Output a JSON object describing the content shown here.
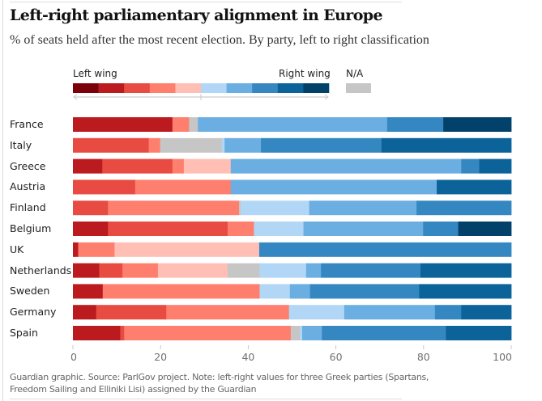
{
  "header": {
    "title": "Left-right parliamentary alignment in Europe",
    "subtitle": "% of seats held after the most recent election. By party, left to right classification"
  },
  "legend": {
    "left_label": "Left wing",
    "right_label": "Right wing",
    "na_label": "N/A",
    "scale_colors": [
      "#7a0009",
      "#bb1a1f",
      "#e84b41",
      "#ff7f6f",
      "#ffbfb4",
      "#b2d7f6",
      "#6aaee2",
      "#3587c1",
      "#0b6399",
      "#02426a"
    ],
    "na_color": "#c6c6c6"
  },
  "footer": {
    "note": "Guardian graphic. Source: ParlGov project. Note: left-right values for three Greek parties (Spartans, Freedom Sailing and Elliniki Lisi) assigned by the Guardian"
  },
  "chart_data": {
    "type": "bar",
    "orientation": "horizontal",
    "stacked": true,
    "title": "Left-right parliamentary alignment in Europe",
    "subtitle": "% of seats held after the most recent election. By party, left to right classification",
    "xlabel": "",
    "ylabel": "",
    "xlim": [
      0,
      100
    ],
    "x_ticks": [
      0,
      20,
      40,
      60,
      80,
      100
    ],
    "x_tick_labels": [
      "0",
      "20",
      "40",
      "60",
      "80",
      "100"
    ],
    "grid": false,
    "legend_position": "top-left",
    "legend": {
      "categories": [
        "Left wing (1)",
        "2",
        "3",
        "4",
        "5",
        "6",
        "7",
        "8",
        "9",
        "Right wing (10)",
        "N/A"
      ],
      "colors": [
        "#7a0009",
        "#bb1a1f",
        "#e84b41",
        "#ff7f6f",
        "#ffbfb4",
        "#b2d7f6",
        "#6aaee2",
        "#3587c1",
        "#0b6399",
        "#02426a",
        "#c6c6c6"
      ]
    },
    "categories": [
      "France",
      "Italy",
      "Greece",
      "Austria",
      "Finland",
      "Belgium",
      "UK",
      "Netherlands",
      "Sweden",
      "Germany",
      "Spain"
    ],
    "rows": [
      {
        "country": "France",
        "segments": [
          {
            "cat": 1,
            "value": 22.7
          },
          {
            "cat": 3,
            "value": 3.8
          },
          {
            "cat": "na",
            "value": 2.0
          },
          {
            "cat": 6,
            "value": 43.2
          },
          {
            "cat": 7,
            "value": 12.8
          },
          {
            "cat": 9,
            "value": 15.5
          }
        ]
      },
      {
        "country": "Italy",
        "segments": [
          {
            "cat": 2,
            "value": 17.3
          },
          {
            "cat": 3,
            "value": 2.6
          },
          {
            "cat": "na",
            "value": 14.1
          },
          {
            "cat": 5,
            "value": 0.6
          },
          {
            "cat": 6,
            "value": 8.3
          },
          {
            "cat": 7,
            "value": 27.5
          },
          {
            "cat": 8,
            "value": 29.6
          }
        ]
      },
      {
        "country": "Greece",
        "segments": [
          {
            "cat": 1,
            "value": 6.7
          },
          {
            "cat": 2,
            "value": 16.0
          },
          {
            "cat": 3,
            "value": 2.6
          },
          {
            "cat": 4,
            "value": 10.7
          },
          {
            "cat": 6,
            "value": 52.6
          },
          {
            "cat": 7,
            "value": 4.1
          },
          {
            "cat": 8,
            "value": 7.3
          }
        ]
      },
      {
        "country": "Austria",
        "segments": [
          {
            "cat": 2,
            "value": 14.2
          },
          {
            "cat": 3,
            "value": 21.8
          },
          {
            "cat": 6,
            "value": 47.0
          },
          {
            "cat": 8,
            "value": 17.0
          }
        ]
      },
      {
        "country": "Finland",
        "segments": [
          {
            "cat": 2,
            "value": 8.0
          },
          {
            "cat": 3,
            "value": 29.9
          },
          {
            "cat": "na",
            "value": 0.4
          },
          {
            "cat": 5,
            "value": 15.6
          },
          {
            "cat": 6,
            "value": 24.5
          },
          {
            "cat": 7,
            "value": 21.6
          }
        ]
      },
      {
        "country": "Belgium",
        "segments": [
          {
            "cat": 1,
            "value": 8.0
          },
          {
            "cat": 2,
            "value": 27.3
          },
          {
            "cat": 3,
            "value": 6.0
          },
          {
            "cat": 5,
            "value": 11.3
          },
          {
            "cat": 6,
            "value": 27.3
          },
          {
            "cat": 7,
            "value": 8.0
          },
          {
            "cat": 9,
            "value": 12.1
          }
        ]
      },
      {
        "country": "UK",
        "segments": [
          {
            "cat": 1,
            "value": 1.2
          },
          {
            "cat": 3,
            "value": 8.3
          },
          {
            "cat": 4,
            "value": 33.0
          },
          {
            "cat": 7,
            "value": 57.5
          }
        ]
      },
      {
        "country": "Netherlands",
        "segments": [
          {
            "cat": 1,
            "value": 6.0
          },
          {
            "cat": 2,
            "value": 5.3
          },
          {
            "cat": 3,
            "value": 8.1
          },
          {
            "cat": 4,
            "value": 15.9
          },
          {
            "cat": "na",
            "value": 7.3
          },
          {
            "cat": 5,
            "value": 10.6
          },
          {
            "cat": 6,
            "value": 3.4
          },
          {
            "cat": 7,
            "value": 22.7
          },
          {
            "cat": 8,
            "value": 20.7
          }
        ]
      },
      {
        "country": "Sweden",
        "segments": [
          {
            "cat": 1,
            "value": 6.8
          },
          {
            "cat": 3,
            "value": 35.8
          },
          {
            "cat": 5,
            "value": 6.9
          },
          {
            "cat": 6,
            "value": 4.6
          },
          {
            "cat": 7,
            "value": 24.9
          },
          {
            "cat": 8,
            "value": 21.0
          }
        ]
      },
      {
        "country": "Germany",
        "segments": [
          {
            "cat": 1,
            "value": 5.3
          },
          {
            "cat": 2,
            "value": 16.0
          },
          {
            "cat": 3,
            "value": 28.0
          },
          {
            "cat": 5,
            "value": 12.6
          },
          {
            "cat": 6,
            "value": 20.7
          },
          {
            "cat": 7,
            "value": 6.0
          },
          {
            "cat": 8,
            "value": 11.4
          }
        ]
      },
      {
        "country": "Spain",
        "segments": [
          {
            "cat": 1,
            "value": 10.8
          },
          {
            "cat": 2,
            "value": 0.9
          },
          {
            "cat": 3,
            "value": 38.0
          },
          {
            "cat": "na",
            "value": 2.1
          },
          {
            "cat": 5,
            "value": 0.5
          },
          {
            "cat": 6,
            "value": 4.5
          },
          {
            "cat": 7,
            "value": 28.3
          },
          {
            "cat": 8,
            "value": 14.9
          }
        ]
      }
    ]
  }
}
